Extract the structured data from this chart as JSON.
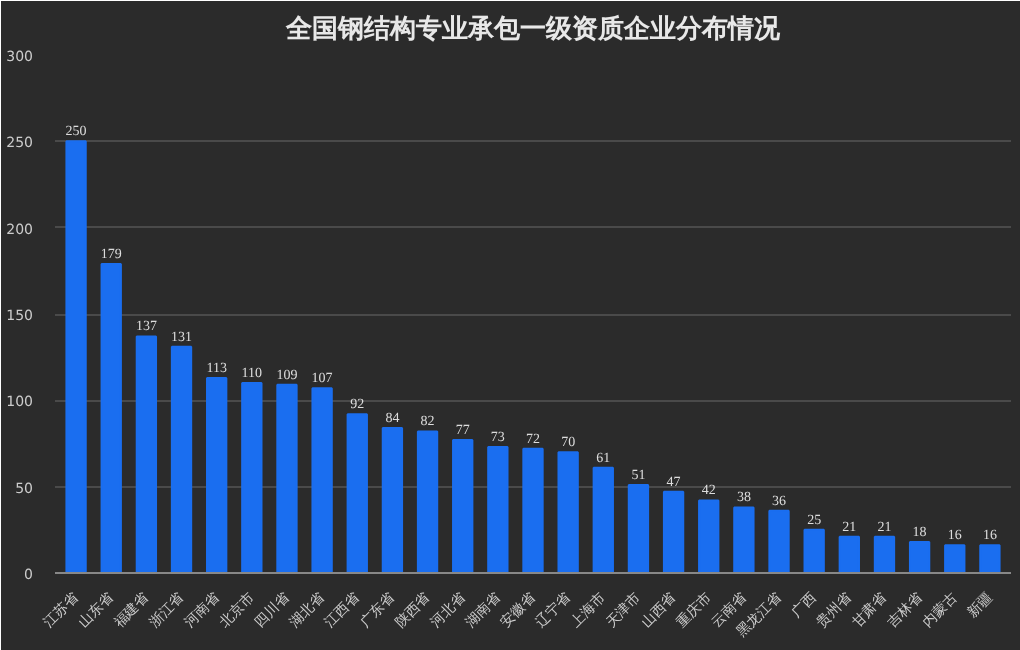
{
  "chart_data": {
    "type": "bar",
    "title": "全国钢结构专业承包一级资质企业分布情况",
    "categories": [
      "江苏省",
      "山东省",
      "福建省",
      "浙江省",
      "河南省",
      "北京市",
      "四川省",
      "湖北省",
      "江西省",
      "广东省",
      "陕西省",
      "河北省",
      "湖南省",
      "安徽省",
      "辽宁省",
      "上海市",
      "天津市",
      "山西省",
      "重庆市",
      "云南省",
      "黑龙江省",
      "广西",
      "贵州省",
      "甘肃省",
      "吉林省",
      "内蒙古",
      "新疆"
    ],
    "values": [
      250,
      179,
      137,
      131,
      113,
      110,
      109,
      107,
      92,
      84,
      82,
      77,
      73,
      72,
      70,
      61,
      51,
      47,
      42,
      38,
      36,
      25,
      21,
      21,
      18,
      16,
      16
    ],
    "color": "#1a6ef0",
    "ylim": [
      0,
      300
    ],
    "yticks": [
      0,
      50,
      100,
      150,
      200,
      250,
      300
    ],
    "grid": "y",
    "data_labels": true
  }
}
